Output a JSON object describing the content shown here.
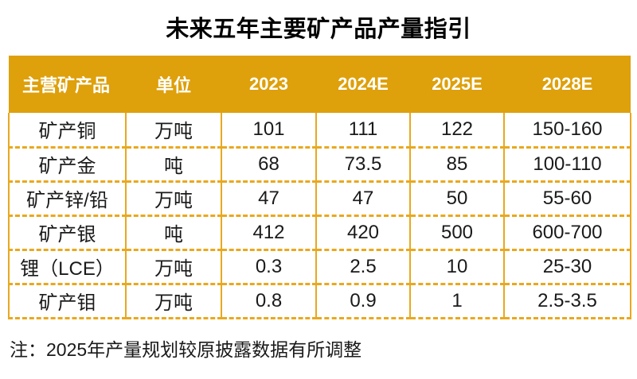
{
  "title": "未来五年主要矿产品产量指引",
  "note": "注：2025年产量规划较原披露数据有所调整",
  "colors": {
    "header_background": "#DEA00B",
    "table_border": "#E9A81E",
    "header_text": "#FFFFFF",
    "body_text": "#1A1A1A"
  },
  "table": {
    "headers": [
      "主营矿产品",
      "单位",
      "2023",
      "2024E",
      "2025E",
      "2028E"
    ],
    "rows": [
      [
        "矿产铜",
        "万吨",
        "101",
        "111",
        "122",
        "150-160"
      ],
      [
        "矿产金",
        "吨",
        "68",
        "73.5",
        "85",
        "100-110"
      ],
      [
        "矿产锌/铅",
        "万吨",
        "47",
        "47",
        "50",
        "55-60"
      ],
      [
        "矿产银",
        "吨",
        "412",
        "420",
        "500",
        "600-700"
      ],
      [
        "锂（LCE）",
        "万吨",
        "0.3",
        "2.5",
        "10",
        "25-30"
      ],
      [
        "矿产钼",
        "万吨",
        "0.8",
        "0.9",
        "1",
        "2.5-3.5"
      ]
    ]
  }
}
